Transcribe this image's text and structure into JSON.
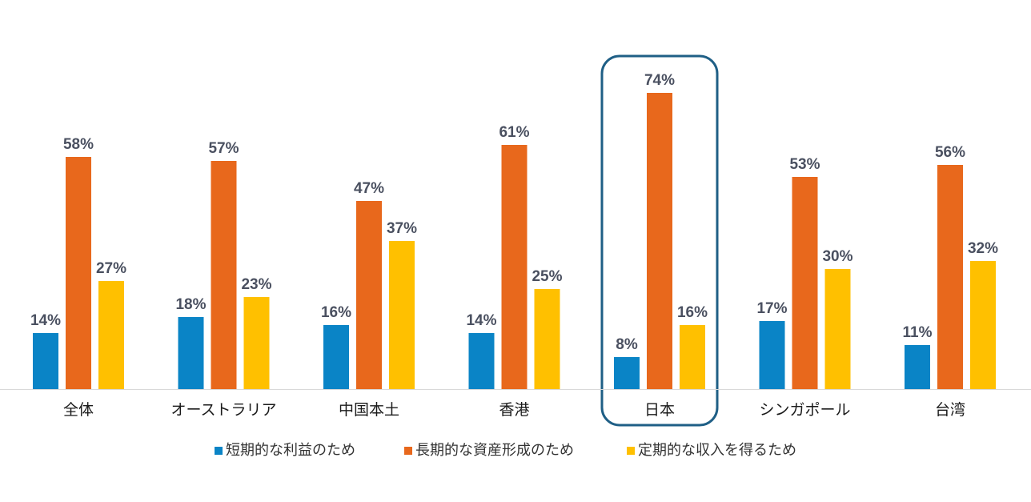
{
  "chart_data": {
    "type": "bar",
    "categories": [
      "全体",
      "オーストラリア",
      "中国本土",
      "香港",
      "日本",
      "シンガポール",
      "台湾"
    ],
    "series": [
      {
        "name": "短期的な利益のため",
        "values": [
          14,
          18,
          16,
          14,
          8,
          17,
          11
        ],
        "color": "#0a84c6"
      },
      {
        "name": "長期的な資産形成のため",
        "values": [
          58,
          57,
          47,
          61,
          74,
          53,
          56
        ],
        "color": "#e8681c"
      },
      {
        "name": "定期的な収入を得るため",
        "values": [
          27,
          23,
          37,
          25,
          16,
          30,
          32
        ],
        "color": "#ffc000"
      }
    ],
    "value_suffix": "%",
    "ylim": [
      0,
      80
    ],
    "grid": false,
    "legend_position": "bottom",
    "highlight_category": "日本",
    "highlight_color": "#1f5f86",
    "axis_color": "#d9d9d9"
  }
}
